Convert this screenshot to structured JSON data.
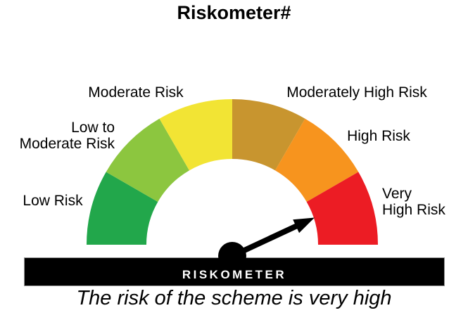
{
  "chart_data": {
    "type": "pie",
    "variant": "semicircular-riskometer-gauge",
    "title": "Riskometer#",
    "segments": [
      {
        "id": "low",
        "label": "Low Risk",
        "label_display": "Low Risk",
        "color": "#22A74B",
        "start_deg": 180,
        "end_deg": 150
      },
      {
        "id": "low-to-moderate",
        "label": "Low to Moderate Risk",
        "label_display": "Low to\nModerate Risk",
        "color": "#8CC63F",
        "start_deg": 150,
        "end_deg": 120
      },
      {
        "id": "moderate",
        "label": "Moderate Risk",
        "label_display": "Moderate Risk",
        "color": "#F2E434",
        "start_deg": 120,
        "end_deg": 90
      },
      {
        "id": "moderately-high",
        "label": "Moderately High Risk",
        "label_display": "Moderately High Risk",
        "color": "#C8952F",
        "start_deg": 90,
        "end_deg": 60
      },
      {
        "id": "high",
        "label": "High Risk",
        "label_display": "High Risk",
        "color": "#F7941E",
        "start_deg": 60,
        "end_deg": 30
      },
      {
        "id": "very-high",
        "label": "Very High Risk",
        "label_display": "Very\nHigh Risk",
        "color": "#EC1C24",
        "start_deg": 30,
        "end_deg": 0
      }
    ],
    "needle": {
      "points_to": "Very High Risk",
      "angle_deg_above_horizontal_right": 25,
      "color": "#000000"
    },
    "gauge_bar_label": "RISKOMETER",
    "caption": "The risk of the scheme is very high",
    "legend_position": "around-arc",
    "grid": false
  }
}
